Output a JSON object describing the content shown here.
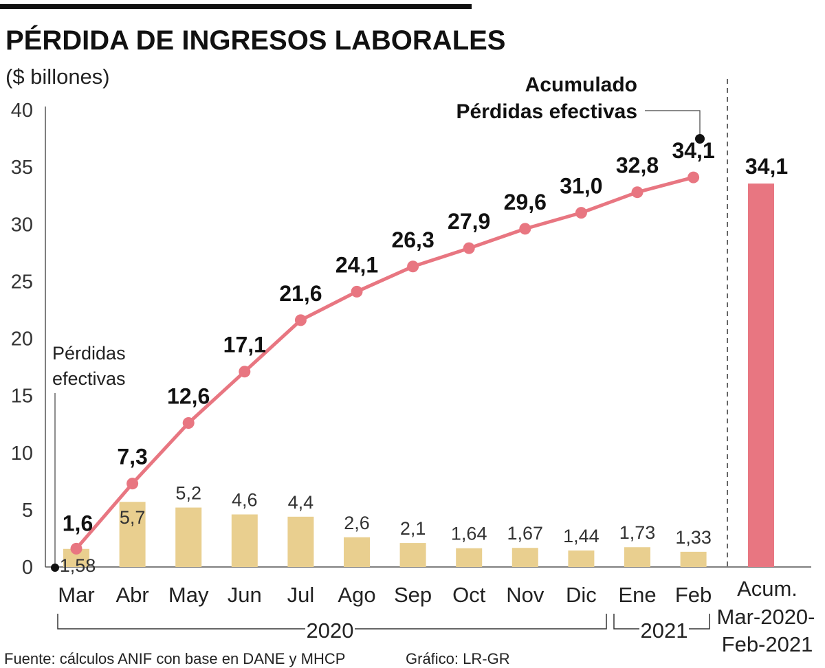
{
  "chart_data": {
    "type": "bar+line",
    "title": "PÉRDIDA DE INGRESOS LABORALES",
    "subtitle": "($ billones)",
    "categories": [
      "Mar",
      "Abr",
      "May",
      "Jun",
      "Jul",
      "Ago",
      "Sep",
      "Oct",
      "Nov",
      "Dic",
      "Ene",
      "Feb"
    ],
    "bar_series": {
      "name": "Pérdidas efectivas",
      "values": [
        1.58,
        5.7,
        5.2,
        4.6,
        4.4,
        2.6,
        2.1,
        1.64,
        1.67,
        1.44,
        1.73,
        1.33
      ],
      "labels": [
        "1,58",
        "5,7",
        "5,2",
        "4,6",
        "4,4",
        "2,6",
        "2,1",
        "1,64",
        "1,67",
        "1,44",
        "1,73",
        "1,33"
      ],
      "color": "#e9cf8f"
    },
    "line_series": {
      "name": "Acumulado Pérdidas efectivas",
      "values": [
        1.6,
        7.3,
        12.6,
        17.1,
        21.6,
        24.1,
        26.3,
        27.9,
        29.6,
        31.0,
        32.8,
        34.1
      ],
      "labels": [
        "1,6",
        "7,3",
        "12,6",
        "17,1",
        "21,6",
        "24,1",
        "26,3",
        "27,9",
        "29,6",
        "31,0",
        "32,8",
        "34,1"
      ],
      "color": "#e87681"
    },
    "total_bar": {
      "label": "34,1",
      "value": 34.1,
      "category_lines": [
        "Acum.",
        "Mar-2020-",
        "Feb-2021"
      ],
      "color": "#e87681"
    },
    "y_ticks": [
      0,
      5,
      10,
      15,
      20,
      25,
      30,
      35,
      40
    ],
    "ylim": [
      0,
      40
    ],
    "year_groups": [
      {
        "label": "2020",
        "from": 0,
        "to": 9
      },
      {
        "label": "2021",
        "from": 10,
        "to": 11
      }
    ],
    "annotations": {
      "bar_note_line1": "Pérdidas",
      "bar_note_line2": "efectivas",
      "line_note_line1": "Acumulado",
      "line_note_line2": "Pérdidas efectivas"
    }
  },
  "footer": {
    "source": "Fuente: cálculos ANIF con base en DANE y MHCP",
    "credit": "Gráfico: LR-GR"
  }
}
